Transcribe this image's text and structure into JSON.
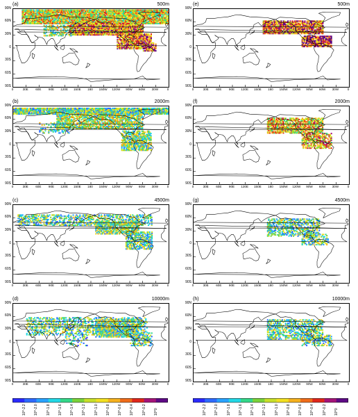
{
  "panels": [
    {
      "letter": "(a)",
      "level": "500m"
    },
    {
      "letter": "(e)",
      "level": "500m"
    },
    {
      "letter": "(b)",
      "level": "2000m"
    },
    {
      "letter": "(f)",
      "level": "2000m"
    },
    {
      "letter": "(c)",
      "level": "4500m"
    },
    {
      "letter": "(g)",
      "level": "4500m"
    },
    {
      "letter": "(d)",
      "level": "10000m"
    },
    {
      "letter": "(h)",
      "level": "10000m"
    }
  ],
  "lat_labels": [
    "90N",
    "60N",
    "30N",
    "0",
    "30S",
    "60S",
    "90S"
  ],
  "lon_labels": [
    "0",
    "30E",
    "60E",
    "90E",
    "120E",
    "150E",
    "180",
    "150W",
    "120W",
    "90W",
    "60W",
    "30W",
    "0"
  ],
  "colorbar_left": {
    "labels": [
      "10^-2.2",
      "10^-2.0",
      "10^-1.8",
      "10^-1.6",
      "10^-1.4",
      "10^-1.2",
      "10^-1.0",
      "10^-0.8",
      "10^-0.6",
      "10^-0.4",
      "10^-0.2",
      "10^0"
    ],
    "colors": [
      "#2b2bff",
      "#2e6bff",
      "#29a3ff",
      "#23d8e6",
      "#34d88a",
      "#7bd33a",
      "#c8e02a",
      "#f2e021",
      "#f6b11e",
      "#f06d1a",
      "#e0281c",
      "#a5147a",
      "#5e0a85"
    ]
  },
  "colorbar_right": {
    "labels": [
      "10^-2.2",
      "10^-2.0",
      "10^-1.8",
      "10^-1.6",
      "10^-1.4",
      "10^-1.2",
      "10^-1.0",
      "10^-0.8",
      "10^-0.6",
      "10^-0.4",
      "10^-0.2",
      "10^0"
    ],
    "colors": [
      "#2b2bff",
      "#2e6bff",
      "#29a3ff",
      "#23d8e6",
      "#34d88a",
      "#7bd33a",
      "#c8e02a",
      "#f2e021",
      "#f6b11e",
      "#f06d1a",
      "#e0281c",
      "#a5147a",
      "#5e0a85"
    ]
  }
}
